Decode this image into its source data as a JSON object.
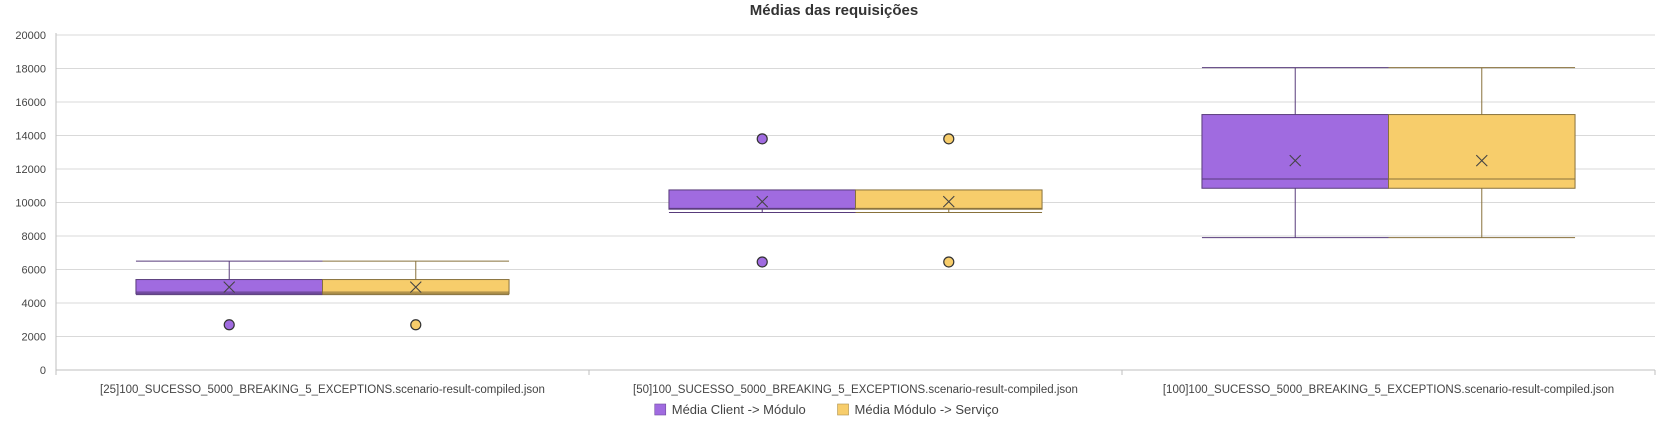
{
  "chart_data": {
    "type": "boxplot",
    "title": "Médias das requisições",
    "xlabel": "",
    "ylabel": "",
    "ylim": [
      0,
      20000
    ],
    "yticks": [
      0,
      2000,
      4000,
      6000,
      8000,
      10000,
      12000,
      14000,
      16000,
      18000,
      20000
    ],
    "grid": true,
    "legend_position": "bottom",
    "categories": [
      "[25]100_SUCESSO_5000_BREAKING_5_EXCEPTIONS.scenario-result-compiled.json",
      "[50]100_SUCESSO_5000_BREAKING_5_EXCEPTIONS.scenario-result-compiled.json",
      "[100]100_SUCESSO_5000_BREAKING_5_EXCEPTIONS.scenario-result-compiled.json"
    ],
    "series": [
      {
        "name": "Média Client -> Módulo",
        "color": "#a06be0",
        "boxes": [
          {
            "min": 4500,
            "q1": 4550,
            "median": 4650,
            "q3": 5400,
            "max": 6500,
            "mean": 4950,
            "outliers": [
              2700
            ]
          },
          {
            "min": 9400,
            "q1": 9600,
            "median": 9650,
            "q3": 10750,
            "max": 10750,
            "mean": 10050,
            "outliers": [
              13800,
              6450
            ]
          },
          {
            "min": 7900,
            "q1": 10850,
            "median": 11400,
            "q3": 15250,
            "max": 18050,
            "mean": 12500,
            "outliers": []
          }
        ]
      },
      {
        "name": "Média Módulo -> Serviço",
        "color": "#f7cd6b",
        "boxes": [
          {
            "min": 4500,
            "q1": 4550,
            "median": 4650,
            "q3": 5400,
            "max": 6500,
            "mean": 4950,
            "outliers": [
              2700
            ]
          },
          {
            "min": 9400,
            "q1": 9600,
            "median": 9650,
            "q3": 10750,
            "max": 10750,
            "mean": 10050,
            "outliers": [
              13800,
              6450
            ]
          },
          {
            "min": 7900,
            "q1": 10850,
            "median": 11400,
            "q3": 15250,
            "max": 18050,
            "mean": 12500,
            "outliers": []
          }
        ]
      }
    ]
  }
}
